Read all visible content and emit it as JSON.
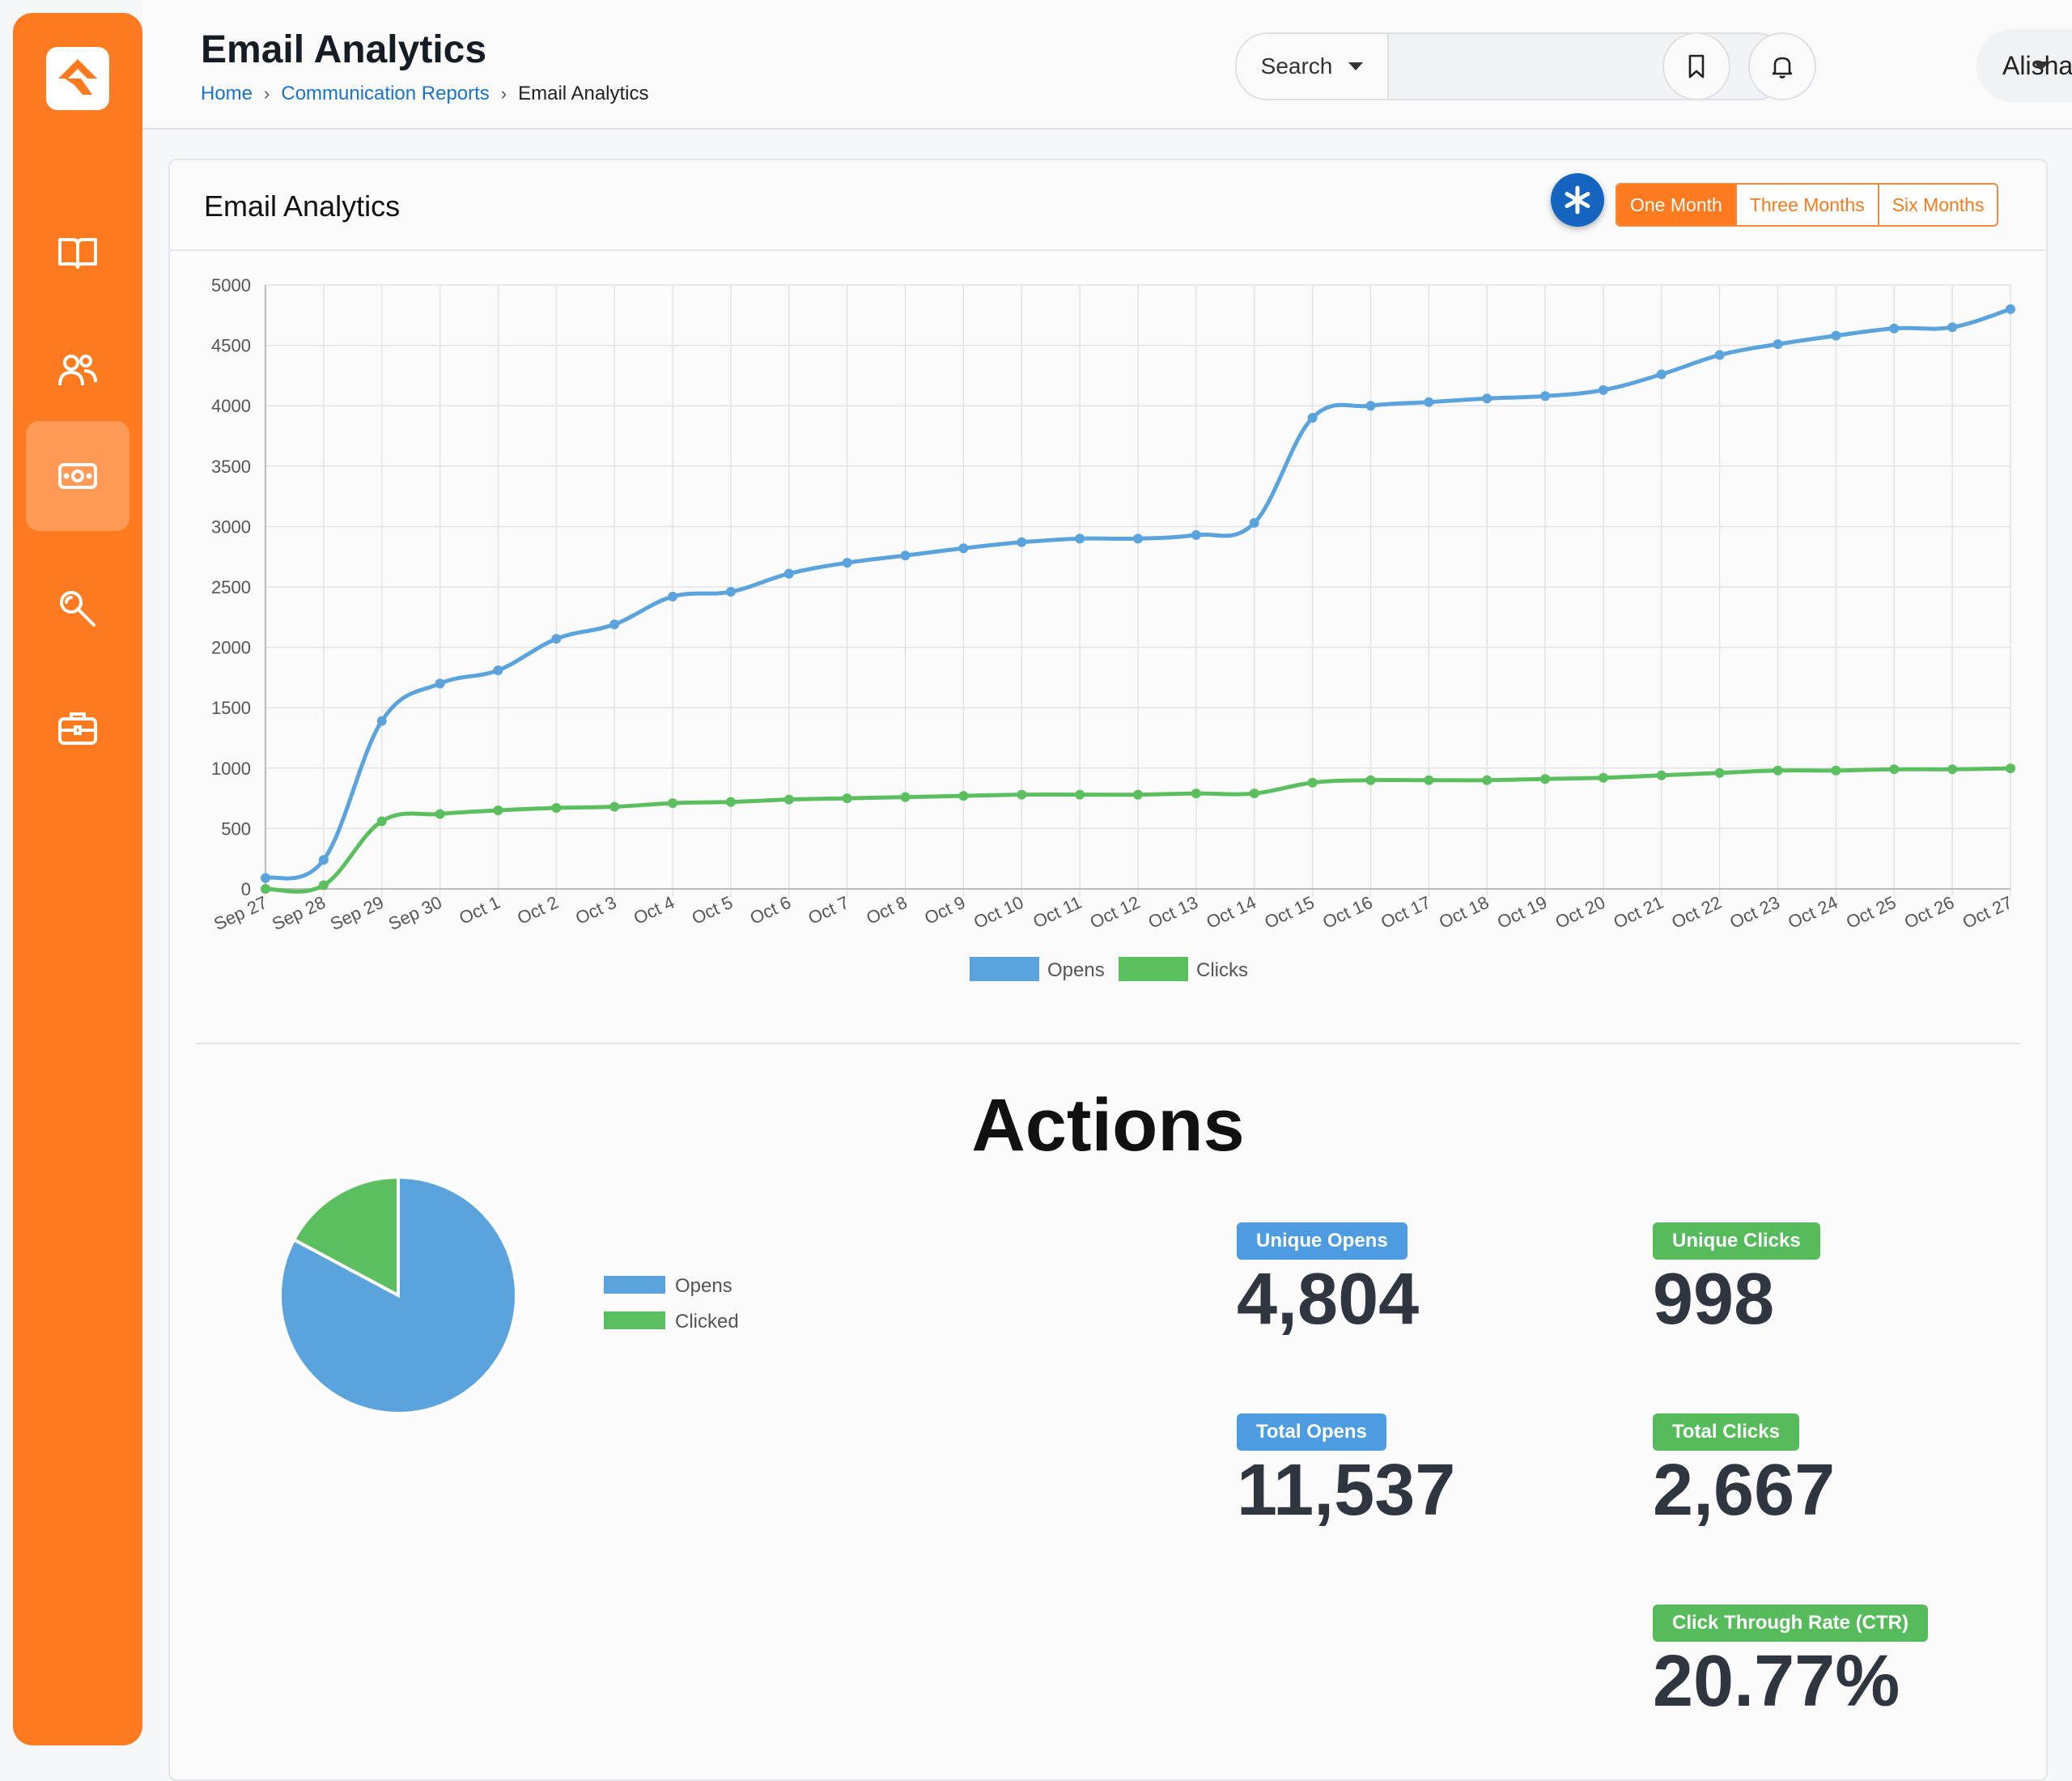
{
  "header": {
    "title": "Email Analytics",
    "breadcrumb": [
      "Home",
      "Communication Reports",
      "Email Analytics"
    ],
    "search": {
      "select_label": "Search",
      "value": "",
      "placeholder": ""
    },
    "user_name": "Alisha"
  },
  "sidebar": {
    "items": [
      {
        "icon": "book-icon"
      },
      {
        "icon": "users-icon"
      },
      {
        "icon": "money-icon",
        "active": true
      },
      {
        "icon": "wrench-icon"
      },
      {
        "icon": "briefcase-icon"
      }
    ]
  },
  "card": {
    "title": "Email Analytics",
    "ranges": [
      "One Month",
      "Three Months",
      "Six Months"
    ],
    "active_range": "One Month"
  },
  "colors": {
    "accent": "#fe7a1e",
    "opens": "#5ba3dc",
    "clicks": "#5cbf5f",
    "badge": "#1565c0"
  },
  "chart_data": [
    {
      "type": "line",
      "categories": [
        "Sep 27",
        "Sep 28",
        "Sep 29",
        "Sep 30",
        "Oct 1",
        "Oct 2",
        "Oct 3",
        "Oct 4",
        "Oct 5",
        "Oct 6",
        "Oct 7",
        "Oct 8",
        "Oct 9",
        "Oct 10",
        "Oct 11",
        "Oct 12",
        "Oct 13",
        "Oct 14",
        "Oct 15",
        "Oct 16",
        "Oct 17",
        "Oct 18",
        "Oct 19",
        "Oct 20",
        "Oct 21",
        "Oct 22",
        "Oct 23",
        "Oct 24",
        "Oct 25",
        "Oct 26",
        "Oct 27"
      ],
      "series": [
        {
          "name": "Opens",
          "color": "#5ba3dc",
          "values": [
            90,
            240,
            1390,
            1700,
            1810,
            2070,
            2190,
            2420,
            2460,
            2610,
            2700,
            2760,
            2820,
            2870,
            2900,
            2900,
            2930,
            3030,
            3900,
            4000,
            4030,
            4060,
            4080,
            4130,
            4260,
            4420,
            4510,
            4580,
            4640,
            4650,
            4800
          ]
        },
        {
          "name": "Clicks",
          "color": "#5cbf5f",
          "values": [
            0,
            30,
            560,
            620,
            650,
            670,
            680,
            710,
            720,
            740,
            750,
            760,
            770,
            780,
            780,
            780,
            790,
            790,
            880,
            900,
            900,
            900,
            910,
            920,
            940,
            960,
            980,
            980,
            990,
            990,
            998
          ]
        }
      ],
      "ylim": [
        0,
        5000
      ],
      "yticks": [
        0,
        500,
        1000,
        1500,
        2000,
        2500,
        3000,
        3500,
        4000,
        4500,
        5000
      ],
      "grid": true,
      "legend": "bottom-center"
    },
    {
      "type": "pie",
      "categories": [
        "Opens",
        "Clicked"
      ],
      "values": [
        4804,
        998
      ],
      "colors": [
        "#5ba3dc",
        "#5cbf5f"
      ],
      "legend": "right"
    }
  ],
  "actions": {
    "title": "Actions",
    "stats": [
      {
        "label": "Unique Opens",
        "value": "4,804",
        "color": "blue"
      },
      {
        "label": "Unique Clicks",
        "value": "998",
        "color": "green"
      },
      {
        "label": "Total Opens",
        "value": "11,537",
        "color": "blue"
      },
      {
        "label": "Total Clicks",
        "value": "2,667",
        "color": "green"
      },
      {
        "label": "Click Through Rate (CTR)",
        "value": "20.77%",
        "color": "green"
      }
    ]
  }
}
